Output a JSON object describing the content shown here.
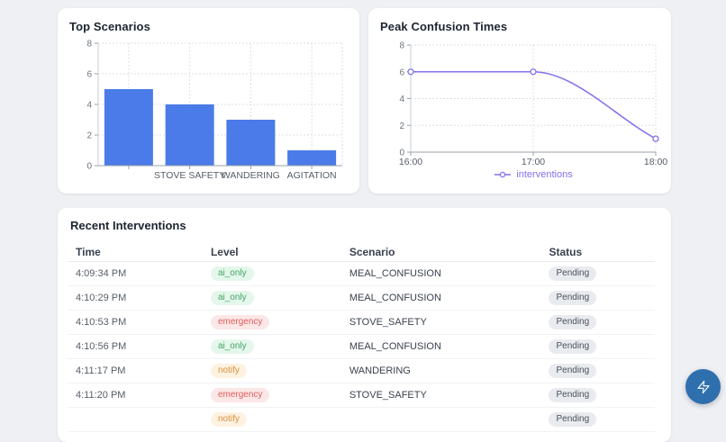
{
  "chart_data": [
    {
      "type": "bar",
      "title": "Top Scenarios",
      "categories": [
        "",
        "STOVE SAFETY",
        "WANDERING",
        "AGITATION"
      ],
      "values": [
        5,
        4,
        3,
        1
      ],
      "xlabel": "",
      "ylabel": "",
      "ylim": [
        0,
        8
      ],
      "yticks": [
        0,
        2,
        4,
        6,
        8
      ],
      "bar_color": "#4a7be8",
      "grid": true,
      "legend_position": "none"
    },
    {
      "type": "line",
      "title": "Peak Confusion Times",
      "x": [
        "16:00",
        "17:00",
        "18:00"
      ],
      "series": [
        {
          "name": "interventions",
          "values": [
            6,
            6,
            1
          ]
        }
      ],
      "xlabel": "",
      "ylabel": "",
      "ylim": [
        0,
        8
      ],
      "yticks": [
        0,
        2,
        4,
        6,
        8
      ],
      "line_color": "#8273ec",
      "point_style": "open-circle",
      "curve": "monotone",
      "grid": true,
      "legend_position": "bottom"
    }
  ],
  "table": {
    "title": "Recent Interventions",
    "columns": [
      "Time",
      "Level",
      "Scenario",
      "Status"
    ],
    "rows": [
      {
        "time": "4:09:34 PM",
        "level": "ai_only",
        "scenario": "MEAL_CONFUSION",
        "status": "Pending"
      },
      {
        "time": "4:10:29 PM",
        "level": "ai_only",
        "scenario": "MEAL_CONFUSION",
        "status": "Pending"
      },
      {
        "time": "4:10:53 PM",
        "level": "emergency",
        "scenario": "STOVE_SAFETY",
        "status": "Pending"
      },
      {
        "time": "4:10:56 PM",
        "level": "ai_only",
        "scenario": "MEAL_CONFUSION",
        "status": "Pending"
      },
      {
        "time": "4:11:17 PM",
        "level": "notify",
        "scenario": "WANDERING",
        "status": "Pending"
      },
      {
        "time": "4:11:20 PM",
        "level": "emergency",
        "scenario": "STOVE_SAFETY",
        "status": "Pending"
      },
      {
        "time": "",
        "level": "notify",
        "scenario": "",
        "status": "Pending"
      }
    ],
    "badge_colors": {
      "ai_only": {
        "bg": "#e4f7eb",
        "fg": "#47a369"
      },
      "notify": {
        "bg": "#fdf2e0",
        "fg": "#d9913f"
      },
      "emergency": {
        "bg": "#fce7e7",
        "fg": "#e05c5c"
      },
      "Pending": {
        "bg": "#e9ebef",
        "fg": "#4b525c"
      }
    }
  },
  "fab": {
    "label": "quick actions",
    "color": "#2e6fae",
    "icon": "lightning-bolt"
  },
  "page": {
    "background": "#eef0f3"
  }
}
